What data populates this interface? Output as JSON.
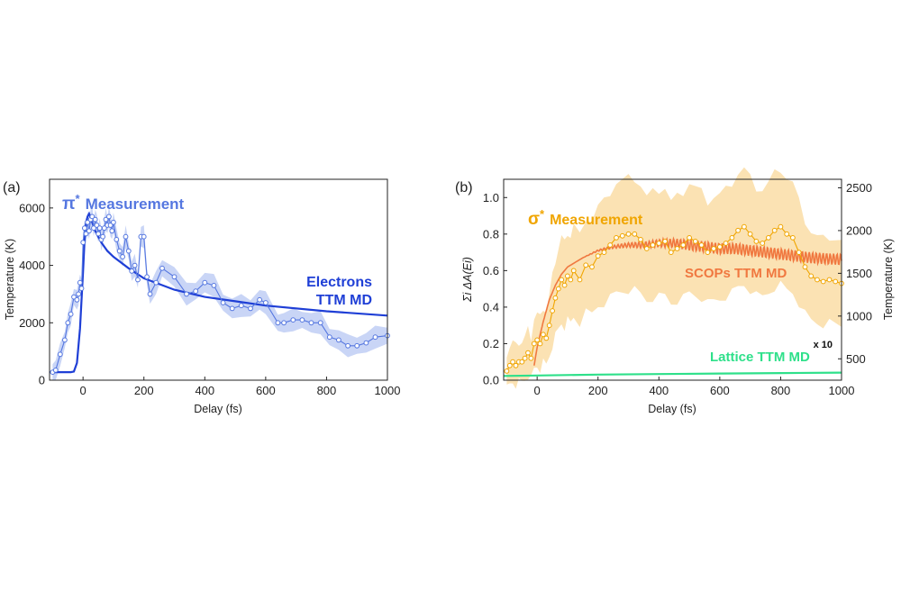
{
  "chart_data": [
    {
      "panel_label": "(a)",
      "type": "line",
      "xlabel": "Delay (fs)",
      "ylabel": "Temperature (K)",
      "xlim": [
        -110,
        1000
      ],
      "ylim": [
        0,
        7000
      ],
      "xticks": [
        "0",
        "200",
        "400",
        "600",
        "800",
        "1000"
      ],
      "yticks": [
        "0",
        "2000",
        "4000",
        "6000"
      ],
      "colors": {
        "measurement": "#5577e0",
        "band": "#c9d5f6",
        "model": "#1f3fd6"
      },
      "annotations": {
        "measurement_symbol": "π",
        "measurement_superscript": "*",
        "measurement_text": "Measurement",
        "model_line1": "Electrons",
        "model_line2": "TTM MD"
      },
      "series": [
        {
          "name": "π* Measurement",
          "x": [
            -100,
            -90,
            -75,
            -60,
            -50,
            -40,
            -30,
            -20,
            -15,
            -10,
            -5,
            0,
            5,
            10,
            15,
            20,
            25,
            30,
            35,
            40,
            45,
            50,
            55,
            60,
            65,
            70,
            75,
            80,
            85,
            90,
            95,
            100,
            110,
            120,
            130,
            140,
            150,
            160,
            170,
            180,
            190,
            200,
            210,
            220,
            240,
            260,
            300,
            340,
            370,
            400,
            430,
            460,
            490,
            520,
            550,
            580,
            600,
            640,
            660,
            690,
            720,
            750,
            780,
            810,
            840,
            870,
            900,
            930,
            960,
            1000
          ],
          "y": [
            280,
            350,
            900,
            1400,
            2000,
            2300,
            2900,
            2800,
            3000,
            3400,
            3200,
            4800,
            5300,
            5100,
            5500,
            5200,
            5600,
            5700,
            5300,
            5600,
            5400,
            5100,
            5300,
            4900,
            5000,
            5300,
            5600,
            5400,
            5700,
            5400,
            5200,
            5500,
            4900,
            4500,
            4300,
            5000,
            4500,
            3800,
            4000,
            3500,
            5000,
            5000,
            3600,
            3000,
            3400,
            3900,
            3600,
            3000,
            3100,
            3400,
            3300,
            2700,
            2500,
            2600,
            2500,
            2800,
            2700,
            2000,
            2000,
            2100,
            2100,
            2000,
            2000,
            1500,
            1400,
            1200,
            1200,
            1300,
            1500,
            1550
          ]
        },
        {
          "name": "Electrons TTM MD",
          "x": [
            -110,
            -40,
            -30,
            -20,
            -10,
            0,
            5,
            10,
            15,
            20,
            30,
            40,
            60,
            80,
            100,
            150,
            200,
            300,
            400,
            500,
            600,
            800,
            1000
          ],
          "y": [
            280,
            280,
            300,
            600,
            1800,
            3800,
            4900,
            5500,
            5700,
            5800,
            5500,
            5200,
            4800,
            4500,
            4300,
            3900,
            3550,
            3150,
            2900,
            2750,
            2600,
            2400,
            2250
          ]
        }
      ]
    },
    {
      "panel_label": "(b)",
      "type": "line",
      "xlabel": "Delay (fs)",
      "ylabel_left": "Σi ΔA(Ei)",
      "ylabel_right": "Temperature (K)",
      "xlim": [
        -110,
        1000
      ],
      "ylim_left": [
        0,
        1.1
      ],
      "ylim_right": [
        250,
        2600
      ],
      "xticks": [
        "0",
        "200",
        "400",
        "600",
        "800",
        "1000"
      ],
      "yticks_left": [
        "0.0",
        "0.2",
        "0.4",
        "0.6",
        "0.8",
        "1.0"
      ],
      "yticks_right": [
        "500",
        "1000",
        "1500",
        "2000",
        "2500"
      ],
      "colors": {
        "measurement": "#f0a500",
        "band": "#fbe2b3",
        "scops": "#f07840",
        "lattice": "#2ee08a"
      },
      "annotations": {
        "measurement_symbol": "σ",
        "measurement_superscript": "*",
        "measurement_text": "Measurement",
        "scops_label": "SCOPs TTM MD",
        "lattice_label": "Lattice TTM MD",
        "lattice_scale": "x 10"
      },
      "series": [
        {
          "name": "σ* Measurement",
          "x": [
            -100,
            -90,
            -80,
            -70,
            -60,
            -50,
            -40,
            -30,
            -20,
            -10,
            0,
            10,
            20,
            30,
            40,
            50,
            60,
            70,
            80,
            90,
            100,
            110,
            120,
            140,
            160,
            180,
            200,
            220,
            240,
            260,
            280,
            300,
            320,
            340,
            360,
            380,
            400,
            420,
            440,
            460,
            480,
            500,
            520,
            540,
            560,
            580,
            600,
            620,
            640,
            660,
            680,
            700,
            720,
            740,
            760,
            780,
            800,
            820,
            840,
            860,
            880,
            900,
            920,
            940,
            960,
            980,
            1000
          ],
          "y": [
            0.05,
            0.08,
            0.1,
            0.08,
            0.1,
            0.1,
            0.12,
            0.15,
            0.12,
            0.2,
            0.22,
            0.2,
            0.25,
            0.23,
            0.3,
            0.38,
            0.45,
            0.5,
            0.55,
            0.52,
            0.57,
            0.55,
            0.6,
            0.55,
            0.63,
            0.62,
            0.68,
            0.7,
            0.74,
            0.78,
            0.79,
            0.8,
            0.8,
            0.77,
            0.72,
            0.74,
            0.75,
            0.76,
            0.7,
            0.72,
            0.74,
            0.78,
            0.76,
            0.74,
            0.7,
            0.72,
            0.73,
            0.75,
            0.78,
            0.82,
            0.84,
            0.8,
            0.76,
            0.75,
            0.78,
            0.82,
            0.84,
            0.8,
            0.78,
            0.7,
            0.62,
            0.57,
            0.55,
            0.54,
            0.55,
            0.54,
            0.53
          ]
        },
        {
          "name": "SCOPs TTM MD",
          "x": [
            -10,
            0,
            20,
            40,
            60,
            80,
            100,
            150,
            200,
            250,
            300,
            350,
            400,
            450,
            500,
            550,
            600,
            650,
            700,
            750,
            800,
            850,
            900,
            950,
            1000
          ],
          "y": [
            0.08,
            0.18,
            0.32,
            0.44,
            0.52,
            0.58,
            0.62,
            0.67,
            0.71,
            0.73,
            0.74,
            0.74,
            0.75,
            0.75,
            0.74,
            0.73,
            0.72,
            0.72,
            0.71,
            0.7,
            0.69,
            0.68,
            0.67,
            0.665,
            0.66
          ]
        },
        {
          "name": "Lattice TTM MD",
          "x": [
            -110,
            0,
            200,
            400,
            600,
            800,
            1000
          ],
          "y": [
            300,
            305,
            315,
            322,
            328,
            333,
            338
          ]
        }
      ]
    }
  ]
}
